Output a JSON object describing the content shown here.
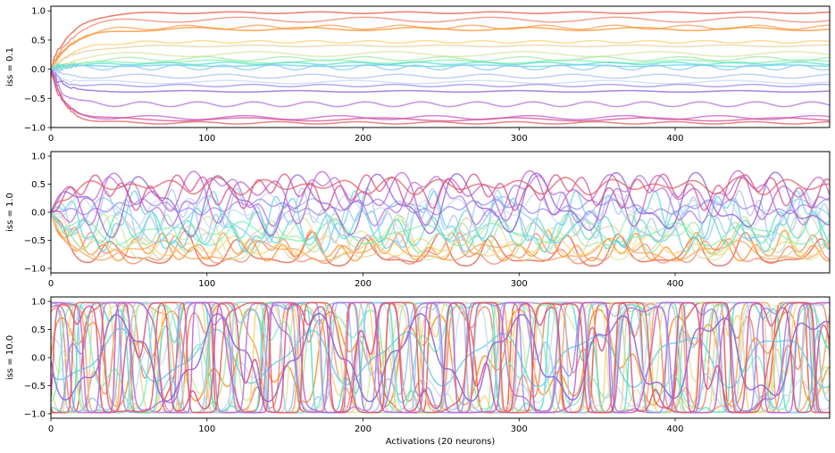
{
  "chart_data": [
    {
      "type": "line",
      "ylabel": "iss = 0.1",
      "xlabel": "",
      "xlim": [
        0,
        499
      ],
      "ylim": [
        -1.0,
        1.08
      ],
      "xticks": [
        0,
        100,
        200,
        300,
        400
      ],
      "yticks": [
        -1.0,
        -0.5,
        0.0,
        0.5,
        1.0
      ],
      "xtick_labels": [
        "0",
        "100",
        "200",
        "300",
        "400"
      ],
      "ytick_labels": [
        "−1.0",
        "−0.5",
        "0.0",
        "0.5",
        "1.0"
      ],
      "grid": false,
      "n_series": 20,
      "dynamics": "stable",
      "series_settle_levels": [
        0.97,
        0.85,
        0.72,
        0.69,
        0.47,
        0.4,
        0.26,
        0.18,
        0.13,
        0.1,
        0.06,
        0.03,
        -0.12,
        -0.22,
        -0.28,
        -0.38,
        -0.6,
        -0.83,
        -0.86,
        -0.92
      ]
    },
    {
      "type": "line",
      "ylabel": "iss = 1.0",
      "xlabel": "",
      "xlim": [
        0,
        499
      ],
      "ylim": [
        -1.08,
        1.08
      ],
      "xticks": [
        0,
        100,
        200,
        300,
        400
      ],
      "yticks": [
        -1.0,
        -0.5,
        0.0,
        0.5,
        1.0
      ],
      "xtick_labels": [
        "0",
        "100",
        "200",
        "300",
        "400"
      ],
      "ytick_labels": [
        "−1.0",
        "−0.5",
        "0.0",
        "0.5",
        "1.0"
      ],
      "grid": false,
      "n_series": 20,
      "dynamics": "quasi-periodic oscillation"
    },
    {
      "type": "line",
      "ylabel": "iss = 10.0",
      "xlabel": "Activations (20 neurons)",
      "xlim": [
        0,
        499
      ],
      "ylim": [
        -1.08,
        1.08
      ],
      "xticks": [
        0,
        100,
        200,
        300,
        400
      ],
      "yticks": [
        -1.0,
        -0.5,
        0.0,
        0.5,
        1.0
      ],
      "xtick_labels": [
        "0",
        "100",
        "200",
        "300",
        "400"
      ],
      "ytick_labels": [
        "−1.0",
        "−0.5",
        "0.0",
        "0.5",
        "1.0"
      ],
      "grid": false,
      "n_series": 20,
      "dynamics": "saturating square-wave oscillation"
    }
  ],
  "colors": [
    "#e8503a",
    "#f0836a",
    "#f5a05a",
    "#ff8c1a",
    "#ffd070",
    "#e6cfa0",
    "#d8e6a0",
    "#a8e6a8",
    "#7ff0b0",
    "#4fe0c8",
    "#5fd0e8",
    "#8ec8f0",
    "#a8c4f0",
    "#c8d8f0",
    "#9b8af0",
    "#8a5cd6",
    "#b070e0",
    "#c05cd0",
    "#d84a8a",
    "#e05a5a"
  ]
}
